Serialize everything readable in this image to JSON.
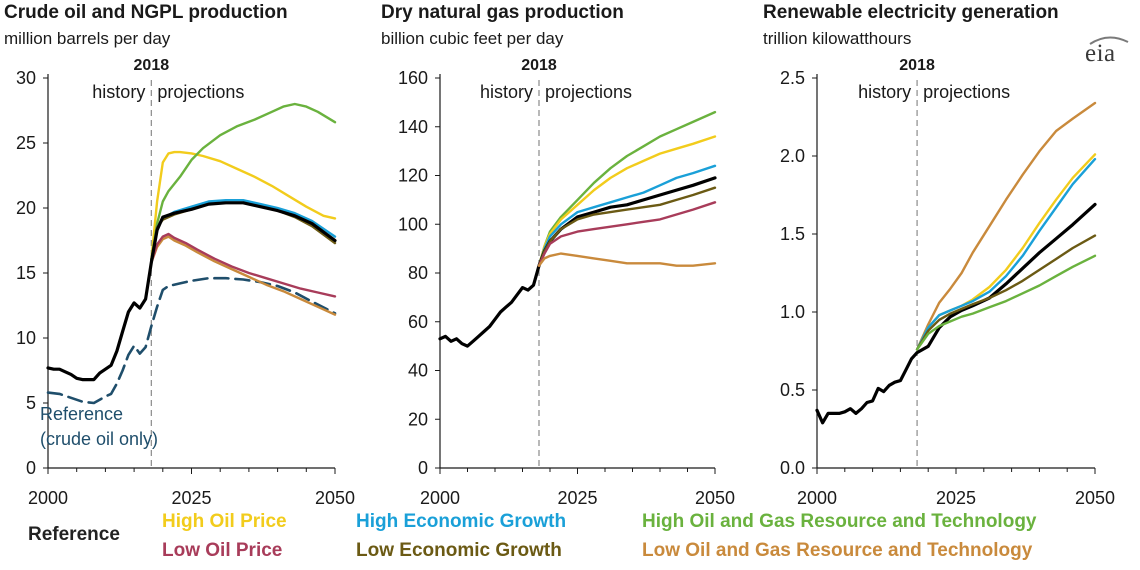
{
  "colors": {
    "reference": "#000000",
    "high_oil_price": "#f2cc1c",
    "low_oil_price": "#a83c5a",
    "high_economic_growth": "#1aa0d8",
    "low_economic_growth": "#6b5a14",
    "high_resource": "#6ab23e",
    "low_resource": "#c98a3c",
    "crude_only": "#1f4e6b",
    "axis": "#1a1a1a",
    "grid": "#d9d9d9"
  },
  "logo_text": "eia",
  "legend": {
    "reference": "Reference",
    "high_oil_price": "High Oil Price",
    "low_oil_price": "Low Oil Price",
    "high_economic_growth": "High Economic Growth",
    "low_economic_growth": "Low Economic Growth",
    "high_resource": "High Oil and Gas Resource and Technology",
    "low_resource": "Low Oil and Gas Resource and Technology"
  },
  "chart_data": [
    {
      "type": "line",
      "title": "Crude oil and NGPL production",
      "subtitle": "million barrels per day",
      "ylim": [
        0,
        30
      ],
      "yticks": [
        0,
        5,
        10,
        15,
        20,
        25,
        30
      ],
      "ytick_labels": [
        "0",
        "5",
        "10",
        "15",
        "20",
        "25",
        "30"
      ],
      "xlim": [
        2000,
        2050
      ],
      "xticks": [
        2000,
        2025,
        2050
      ],
      "xtick_labels": [
        "2000",
        "2025",
        "2050"
      ],
      "divider": {
        "year": 2018,
        "label": "2018",
        "left_label": "history",
        "right_label": "projections"
      },
      "annotation": [
        "Reference",
        "(crude oil only)"
      ],
      "series": [
        {
          "name": "Reference (crude oil only)",
          "key": "crude_only",
          "dashed": true,
          "x": [
            2000,
            2002,
            2004,
            2006,
            2008,
            2010,
            2011,
            2012,
            2013,
            2014,
            2015,
            2016,
            2017,
            2018,
            2019,
            2020,
            2021,
            2023,
            2025,
            2028,
            2031,
            2034,
            2037,
            2040,
            2043,
            2046,
            2050
          ],
          "y": [
            5.8,
            5.7,
            5.4,
            5.1,
            5.0,
            5.5,
            5.7,
            6.5,
            7.5,
            8.7,
            9.4,
            8.8,
            9.3,
            10.9,
            12.4,
            13.7,
            14.0,
            14.2,
            14.4,
            14.6,
            14.6,
            14.5,
            14.3,
            14.0,
            13.5,
            12.8,
            11.9
          ]
        },
        {
          "name": "High Oil Price",
          "key": "high_oil_price",
          "x": [
            2018,
            2019,
            2020,
            2021,
            2022,
            2023,
            2025,
            2027,
            2030,
            2033,
            2036,
            2039,
            2042,
            2045,
            2048,
            2050
          ],
          "y": [
            16.0,
            20.5,
            23.5,
            24.2,
            24.3,
            24.3,
            24.2,
            24.0,
            23.6,
            23.0,
            22.4,
            21.7,
            20.9,
            20.1,
            19.4,
            19.2
          ]
        },
        {
          "name": "High Oil and Gas Resource and Technology",
          "key": "high_resource",
          "x": [
            2018,
            2019,
            2020,
            2021,
            2023,
            2025,
            2027,
            2030,
            2033,
            2036,
            2039,
            2041,
            2043,
            2045,
            2047,
            2050
          ],
          "y": [
            16.0,
            18.8,
            20.5,
            21.3,
            22.4,
            23.7,
            24.6,
            25.6,
            26.3,
            26.8,
            27.4,
            27.8,
            28.0,
            27.8,
            27.4,
            26.6
          ]
        },
        {
          "name": "High Economic Growth",
          "key": "high_economic_growth",
          "x": [
            2018,
            2019,
            2020,
            2022,
            2025,
            2028,
            2031,
            2034,
            2037,
            2040,
            2043,
            2046,
            2050
          ],
          "y": [
            16.0,
            18.5,
            19.2,
            19.7,
            20.1,
            20.5,
            20.6,
            20.6,
            20.3,
            20.0,
            19.6,
            19.0,
            17.8
          ]
        },
        {
          "name": "Low Economic Growth",
          "key": "low_economic_growth",
          "x": [
            2018,
            2019,
            2020,
            2022,
            2025,
            2028,
            2031,
            2034,
            2037,
            2040,
            2043,
            2046,
            2050
          ],
          "y": [
            16.0,
            18.5,
            19.1,
            19.5,
            19.9,
            20.3,
            20.4,
            20.4,
            20.1,
            19.8,
            19.3,
            18.6,
            17.3
          ]
        },
        {
          "name": "Low Oil and Gas Resource and Technology",
          "key": "low_resource",
          "x": [
            2018,
            2019,
            2020,
            2021,
            2022,
            2024,
            2026,
            2029,
            2032,
            2035,
            2038,
            2041,
            2044,
            2047,
            2050
          ],
          "y": [
            15.8,
            17.0,
            17.6,
            17.8,
            17.5,
            17.1,
            16.6,
            15.9,
            15.3,
            14.7,
            14.1,
            13.6,
            13.0,
            12.4,
            11.8
          ]
        },
        {
          "name": "Low Oil Price",
          "key": "low_oil_price",
          "x": [
            2018,
            2019,
            2020,
            2021,
            2022,
            2024,
            2026,
            2029,
            2032,
            2035,
            2038,
            2041,
            2044,
            2047,
            2050
          ],
          "y": [
            15.8,
            17.2,
            17.8,
            18.0,
            17.7,
            17.3,
            16.8,
            16.1,
            15.5,
            15.0,
            14.6,
            14.2,
            13.8,
            13.5,
            13.2
          ]
        },
        {
          "name": "Reference",
          "key": "reference",
          "bold": true,
          "x": [
            2000,
            2001,
            2002,
            2003,
            2004,
            2005,
            2006,
            2007,
            2008,
            2009,
            2010,
            2011,
            2012,
            2013,
            2014,
            2015,
            2016,
            2017,
            2018,
            2019,
            2020,
            2022,
            2025,
            2028,
            2031,
            2034,
            2037,
            2040,
            2043,
            2046,
            2050
          ],
          "y": [
            7.7,
            7.6,
            7.6,
            7.4,
            7.2,
            6.9,
            6.8,
            6.8,
            6.8,
            7.3,
            7.6,
            7.9,
            9.0,
            10.5,
            12.0,
            12.7,
            12.3,
            13.0,
            15.8,
            18.3,
            19.3,
            19.6,
            19.9,
            20.3,
            20.4,
            20.4,
            20.1,
            19.8,
            19.4,
            18.8,
            17.5
          ]
        }
      ]
    },
    {
      "type": "line",
      "title": "Dry natural gas production",
      "subtitle": "billion cubic feet per day",
      "ylim": [
        0,
        160
      ],
      "yticks": [
        0,
        20,
        40,
        60,
        80,
        100,
        120,
        140,
        160
      ],
      "ytick_labels": [
        "0",
        "20",
        "40",
        "60",
        "80",
        "100",
        "120",
        "140",
        "160"
      ],
      "xlim": [
        2000,
        2050
      ],
      "xticks": [
        2000,
        2025,
        2050
      ],
      "xtick_labels": [
        "2000",
        "2025",
        "2050"
      ],
      "divider": {
        "year": 2018,
        "label": "2018",
        "left_label": "history",
        "right_label": "projections"
      },
      "series": [
        {
          "name": "High Oil and Gas Resource and Technology",
          "key": "high_resource",
          "x": [
            2018,
            2019,
            2020,
            2022,
            2025,
            2028,
            2031,
            2034,
            2037,
            2040,
            2043,
            2046,
            2050
          ],
          "y": [
            83,
            91,
            97,
            103,
            110,
            117,
            123,
            128,
            132,
            136,
            139,
            142,
            146
          ]
        },
        {
          "name": "High Oil Price",
          "key": "high_oil_price",
          "x": [
            2018,
            2019,
            2020,
            2022,
            2025,
            2028,
            2031,
            2034,
            2037,
            2040,
            2043,
            2046,
            2050
          ],
          "y": [
            83,
            91,
            96,
            102,
            108,
            114,
            119,
            123,
            126,
            129,
            131,
            133,
            136
          ]
        },
        {
          "name": "High Economic Growth",
          "key": "high_economic_growth",
          "x": [
            2018,
            2019,
            2020,
            2022,
            2025,
            2028,
            2031,
            2034,
            2037,
            2040,
            2043,
            2046,
            2050
          ],
          "y": [
            83,
            90,
            95,
            100,
            105,
            107,
            109,
            111,
            113,
            116,
            119,
            121,
            124
          ]
        },
        {
          "name": "Reference",
          "key": "reference",
          "bold": true,
          "x": [
            2000,
            2001,
            2002,
            2003,
            2004,
            2005,
            2006,
            2007,
            2008,
            2009,
            2010,
            2011,
            2012,
            2013,
            2014,
            2015,
            2016,
            2017,
            2018,
            2019,
            2020,
            2022,
            2025,
            2028,
            2031,
            2034,
            2037,
            2040,
            2043,
            2046,
            2050
          ],
          "y": [
            53,
            54,
            52,
            53,
            51,
            50,
            52,
            54,
            56,
            58,
            61,
            64,
            66,
            68,
            71,
            74,
            73,
            75,
            83,
            89,
            93,
            98,
            103,
            105,
            107,
            108,
            110,
            112,
            114,
            116,
            119
          ]
        },
        {
          "name": "Low Economic Growth",
          "key": "low_economic_growth",
          "x": [
            2018,
            2019,
            2020,
            2022,
            2025,
            2028,
            2031,
            2034,
            2037,
            2040,
            2043,
            2046,
            2050
          ],
          "y": [
            83,
            89,
            93,
            98,
            102,
            104,
            105,
            106,
            107,
            108,
            110,
            112,
            115
          ]
        },
        {
          "name": "Low Oil Price",
          "key": "low_oil_price",
          "x": [
            2018,
            2019,
            2020,
            2022,
            2025,
            2028,
            2031,
            2034,
            2037,
            2040,
            2043,
            2046,
            2050
          ],
          "y": [
            83,
            88,
            92,
            95,
            97,
            98,
            99,
            100,
            101,
            102,
            104,
            106,
            109
          ]
        },
        {
          "name": "Low Oil and Gas Resource and Technology",
          "key": "low_resource",
          "x": [
            2018,
            2019,
            2020,
            2022,
            2025,
            2028,
            2031,
            2034,
            2037,
            2040,
            2043,
            2046,
            2050
          ],
          "y": [
            83,
            86,
            87,
            88,
            87,
            86,
            85,
            84,
            84,
            84,
            83,
            83,
            84
          ]
        }
      ]
    },
    {
      "type": "line",
      "title": "Renewable electricity generation",
      "subtitle": "trillion kilowatthours",
      "ylim": [
        0,
        2.5
      ],
      "yticks": [
        0,
        0.5,
        1.0,
        1.5,
        2.0,
        2.5
      ],
      "ytick_labels": [
        "0.0",
        "0.5",
        "1.0",
        "1.5",
        "2.0",
        "2.5"
      ],
      "xlim": [
        2000,
        2050
      ],
      "xticks": [
        2000,
        2025,
        2050
      ],
      "xtick_labels": [
        "2000",
        "2025",
        "2050"
      ],
      "divider": {
        "year": 2018,
        "label": "2018",
        "left_label": "history",
        "right_label": "projections"
      },
      "series": [
        {
          "name": "Low Oil and Gas Resource and Technology",
          "key": "low_resource",
          "x": [
            2018,
            2020,
            2022,
            2024,
            2026,
            2028,
            2031,
            2034,
            2037,
            2040,
            2043,
            2046,
            2050
          ],
          "y": [
            0.76,
            0.92,
            1.06,
            1.15,
            1.25,
            1.38,
            1.55,
            1.72,
            1.88,
            2.03,
            2.16,
            2.24,
            2.34
          ]
        },
        {
          "name": "High Oil Price",
          "key": "high_oil_price",
          "x": [
            2018,
            2020,
            2022,
            2024,
            2026,
            2028,
            2031,
            2034,
            2037,
            2040,
            2043,
            2046,
            2050
          ],
          "y": [
            0.76,
            0.9,
            0.98,
            1.01,
            1.04,
            1.08,
            1.16,
            1.27,
            1.41,
            1.57,
            1.72,
            1.86,
            2.01
          ]
        },
        {
          "name": "High Economic Growth",
          "key": "high_economic_growth",
          "x": [
            2018,
            2020,
            2022,
            2024,
            2026,
            2028,
            2031,
            2034,
            2037,
            2040,
            2043,
            2046,
            2050
          ],
          "y": [
            0.76,
            0.9,
            0.98,
            1.01,
            1.04,
            1.07,
            1.13,
            1.23,
            1.36,
            1.52,
            1.67,
            1.82,
            1.98
          ]
        },
        {
          "name": "Reference",
          "key": "reference",
          "bold": true,
          "x": [
            2000,
            2001,
            2002,
            2003,
            2004,
            2005,
            2006,
            2007,
            2008,
            2009,
            2010,
            2011,
            2012,
            2013,
            2014,
            2015,
            2016,
            2017,
            2018,
            2020,
            2022,
            2024,
            2026,
            2028,
            2031,
            2034,
            2037,
            2040,
            2043,
            2046,
            2050
          ],
          "y": [
            0.37,
            0.29,
            0.35,
            0.35,
            0.35,
            0.36,
            0.38,
            0.35,
            0.38,
            0.42,
            0.43,
            0.51,
            0.49,
            0.53,
            0.55,
            0.56,
            0.63,
            0.7,
            0.74,
            0.78,
            0.9,
            0.97,
            1.01,
            1.04,
            1.09,
            1.18,
            1.28,
            1.38,
            1.47,
            1.56,
            1.69
          ]
        },
        {
          "name": "Low Economic Growth",
          "key": "low_economic_growth",
          "x": [
            2018,
            2020,
            2022,
            2024,
            2026,
            2028,
            2031,
            2034,
            2037,
            2040,
            2043,
            2046,
            2050
          ],
          "y": [
            0.76,
            0.88,
            0.95,
            0.99,
            1.02,
            1.05,
            1.09,
            1.14,
            1.2,
            1.27,
            1.34,
            1.41,
            1.49
          ]
        },
        {
          "name": "High Oil and Gas Resource and Technology",
          "key": "high_resource",
          "x": [
            2018,
            2020,
            2022,
            2024,
            2026,
            2028,
            2031,
            2034,
            2037,
            2040,
            2043,
            2046,
            2050
          ],
          "y": [
            0.76,
            0.86,
            0.91,
            0.94,
            0.97,
            0.99,
            1.03,
            1.07,
            1.12,
            1.17,
            1.23,
            1.29,
            1.36
          ]
        }
      ]
    }
  ]
}
